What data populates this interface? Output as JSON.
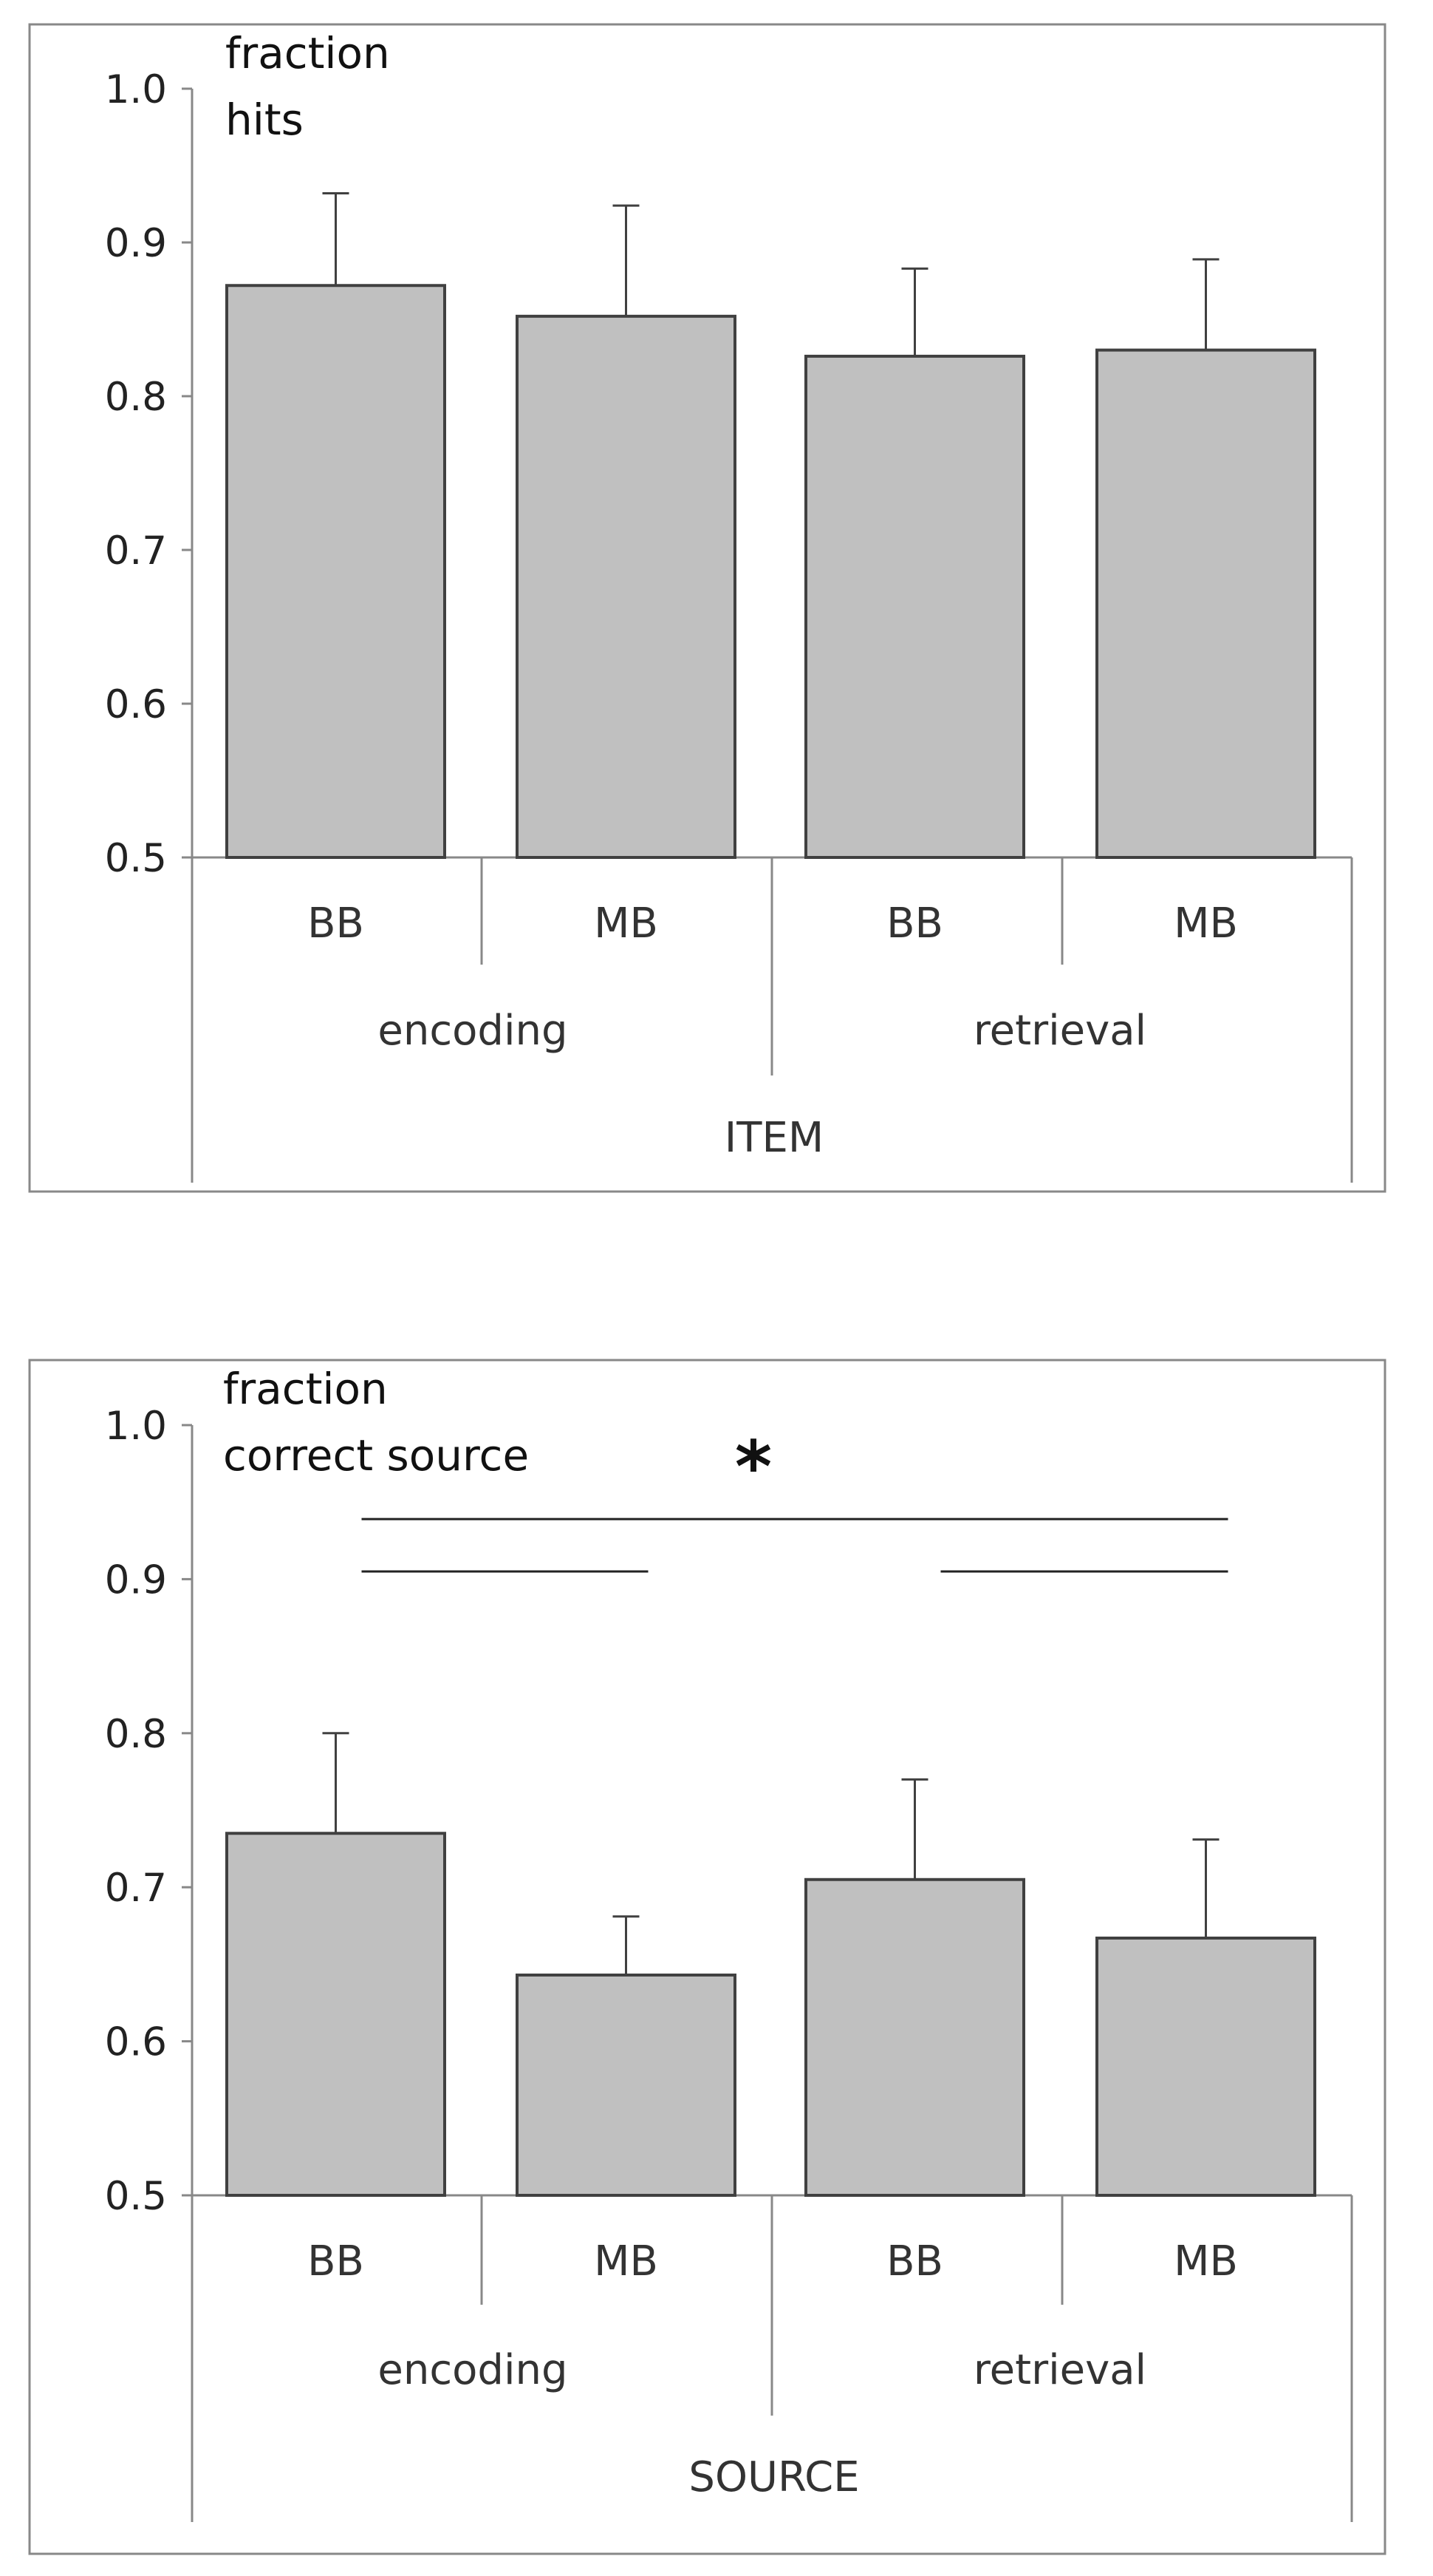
{
  "colors": {
    "bar_fill": "#c0c0c0",
    "bar_stroke": "#404040",
    "axis": "#888888",
    "text": "#222222",
    "frame": "#888888"
  },
  "chart_data": [
    {
      "type": "bar",
      "panel": "ITEM",
      "annotation_lines": [
        "fraction",
        "hits"
      ],
      "categories": [
        "BB",
        "MB",
        "BB",
        "MB"
      ],
      "groups": [
        "encoding",
        "retrieval"
      ],
      "group_label": "ITEM",
      "values": [
        0.872,
        0.852,
        0.826,
        0.83
      ],
      "error_upper": [
        0.932,
        0.924,
        0.883,
        0.889
      ],
      "ylim": [
        0.5,
        1.0
      ],
      "yticks": [
        "0.5",
        "0.6",
        "0.7",
        "0.8",
        "0.9",
        "1.0"
      ],
      "grid": false,
      "significance": null
    },
    {
      "type": "bar",
      "panel": "SOURCE",
      "annotation_lines": [
        "fraction",
        "correct source"
      ],
      "categories": [
        "BB",
        "MB",
        "BB",
        "MB"
      ],
      "groups": [
        "encoding",
        "retrieval"
      ],
      "group_label": "SOURCE",
      "values": [
        0.735,
        0.643,
        0.705,
        0.667
      ],
      "error_upper": [
        0.8,
        0.681,
        0.77,
        0.731
      ],
      "ylim": [
        0.5,
        1.0
      ],
      "yticks": [
        "0.5",
        "0.6",
        "0.7",
        "0.8",
        "0.9",
        "1.0"
      ],
      "grid": false,
      "significance": {
        "marker": "*",
        "brackets": [
          {
            "from": 0,
            "to": 1,
            "y": 0.905
          },
          {
            "from": 2,
            "to": 3,
            "y": 0.905
          },
          {
            "from": 0,
            "to": 3,
            "y": 0.939
          }
        ]
      }
    }
  ]
}
